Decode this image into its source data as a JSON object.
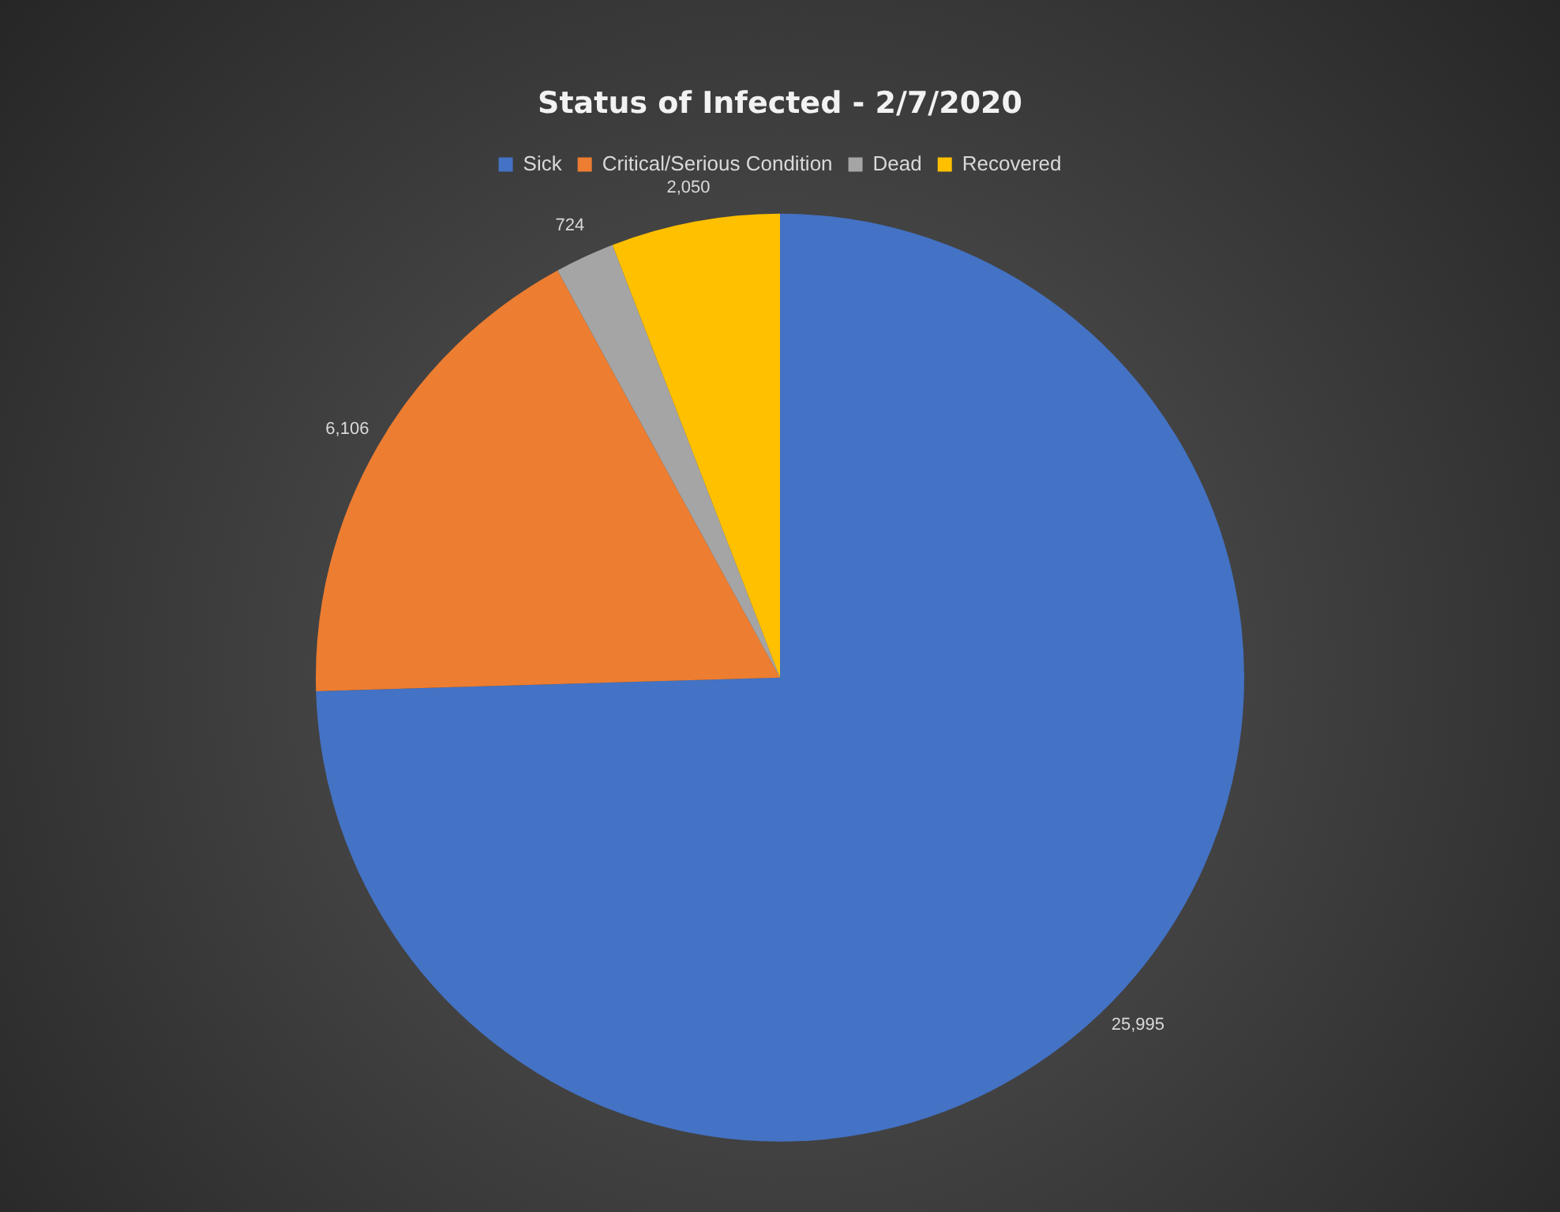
{
  "chart_data": {
    "type": "pie",
    "title": "Status of Infected - 2/7/2020",
    "categories": [
      "Sick",
      "Critical/Serious Condition",
      "Dead",
      "Recovered"
    ],
    "values": [
      25995,
      6106,
      724,
      2050
    ],
    "colors": [
      "#4472c4",
      "#ed7d31",
      "#a5a5a5",
      "#ffc000"
    ],
    "value_labels": [
      "25,995",
      "6,106",
      "724",
      "2,050"
    ],
    "legend": "top"
  }
}
